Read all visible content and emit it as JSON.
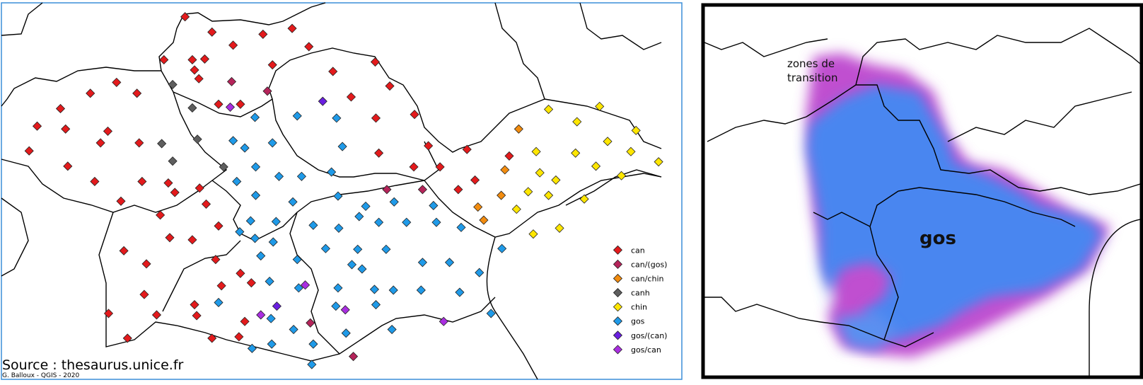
{
  "left_map": {
    "legend": [
      {
        "label": "can",
        "color": "#e31a1c"
      },
      {
        "label": "can/(gos)",
        "color": "#b5245a"
      },
      {
        "label": "can/chin",
        "color": "#f28c0f"
      },
      {
        "label": "canh",
        "color": "#5e5e5e"
      },
      {
        "label": "chin",
        "color": "#ffe600"
      },
      {
        "label": "gos",
        "color": "#1f9ae8"
      },
      {
        "label": "gos/(can)",
        "color": "#6a1fe0"
      },
      {
        "label": "gos/can",
        "color": "#a92ee0"
      }
    ],
    "source": "Source : thesaurus.unice.fr",
    "credit": "G. Balloux - QGIS - 2020"
  },
  "right_map": {
    "annotation": "zones de transition",
    "region_label": "gos"
  }
}
